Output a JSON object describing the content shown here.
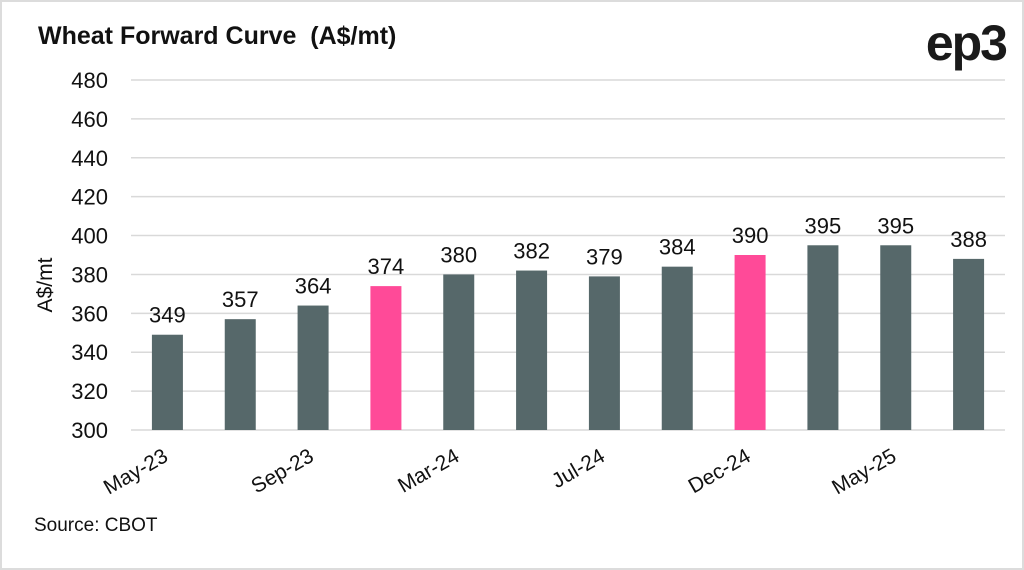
{
  "chart_data": {
    "type": "bar",
    "title": "Wheat Forward Curve  (A$/mt)",
    "xlabel": "",
    "ylabel": "A$/mt",
    "ylim": [
      300,
      480
    ],
    "yticks": [
      300,
      320,
      340,
      360,
      380,
      400,
      420,
      440,
      460,
      480
    ],
    "grid": true,
    "categories": [
      "May-23",
      "",
      "Sep-23",
      "",
      "Mar-24",
      "",
      "Jul-24",
      "",
      "Dec-24",
      "",
      "May-25",
      ""
    ],
    "values": [
      349,
      357,
      364,
      374,
      380,
      382,
      379,
      384,
      390,
      395,
      395,
      388
    ],
    "highlighted": [
      false,
      false,
      false,
      true,
      false,
      false,
      false,
      false,
      true,
      false,
      false,
      false
    ],
    "colors": {
      "bar": "#56686a",
      "highlight": "#ff4a98",
      "grid": "#d9d9d9"
    },
    "source": "Source: CBOT"
  },
  "logo": "ep3"
}
